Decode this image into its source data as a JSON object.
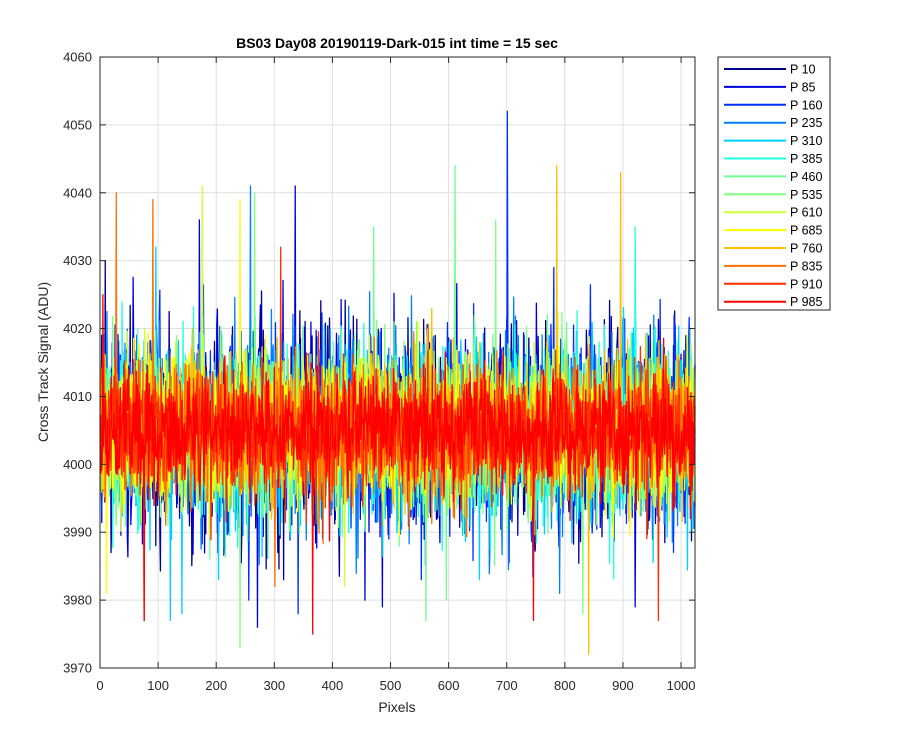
{
  "chart_data": {
    "type": "line",
    "title": "BS03 Day08 20190119-Dark-015 int time = 15 sec",
    "xlabel": "Pixels",
    "ylabel": "Cross Track Signal (ADU)",
    "xlim": [
      0,
      1024
    ],
    "ylim": [
      3970,
      4060
    ],
    "xticks": [
      0,
      100,
      200,
      300,
      400,
      500,
      600,
      700,
      800,
      900,
      1000
    ],
    "yticks": [
      3970,
      3980,
      3990,
      4000,
      4010,
      4020,
      4030,
      4040,
      4050,
      4060
    ],
    "grid": true,
    "legend_position": "outside-top-right",
    "pixel_count": 1024,
    "baseline_mean": 4005,
    "series": [
      {
        "name": "P 10",
        "color": "#00008f",
        "peaks": [
          [
            8,
            4030
          ]
        ],
        "troughs": [
          [
            18,
            3987
          ]
        ]
      },
      {
        "name": "P 85",
        "color": "#0000df",
        "peaks": [
          [
            170,
            4036
          ],
          [
            335,
            4041
          ]
        ],
        "troughs": [
          [
            270,
            3976
          ],
          [
            455,
            3980
          ],
          [
            485,
            3979
          ],
          [
            920,
            3979
          ]
        ]
      },
      {
        "name": "P 160",
        "color": "#0030ff",
        "peaks": [
          [
            700,
            4052
          ]
        ],
        "troughs": [
          [
            255,
            3980
          ],
          [
            340,
            3978
          ]
        ]
      },
      {
        "name": "P 235",
        "color": "#0080ff",
        "peaks": [
          [
            258,
            4041
          ]
        ],
        "troughs": [
          [
            790,
            3981
          ]
        ]
      },
      {
        "name": "P 310",
        "color": "#00d0ff",
        "peaks": [
          [
            95,
            4032
          ]
        ],
        "troughs": [
          [
            120,
            3977
          ],
          [
            140,
            3978
          ]
        ]
      },
      {
        "name": "P 385",
        "color": "#20ffdf",
        "peaks": [
          [
            920,
            4035
          ]
        ],
        "troughs": [
          [
            960,
            3984
          ]
        ]
      },
      {
        "name": "P 460",
        "color": "#70ff8f",
        "peaks": [
          [
            610,
            4044
          ],
          [
            470,
            4035
          ]
        ],
        "troughs": [
          [
            560,
            3977
          ],
          [
            595,
            3980
          ]
        ]
      },
      {
        "name": "P 535",
        "color": "#80ff80",
        "peaks": [
          [
            265,
            4040
          ],
          [
            680,
            4036
          ]
        ],
        "troughs": [
          [
            240,
            3973
          ],
          [
            830,
            3978
          ]
        ]
      },
      {
        "name": "P 610",
        "color": "#cfff30",
        "peaks": [
          [
            175,
            4041
          ]
        ],
        "troughs": [
          [
            420,
            3982
          ]
        ]
      },
      {
        "name": "P 685",
        "color": "#ffff00",
        "peaks": [
          [
            240,
            4039
          ]
        ],
        "troughs": [
          [
            10,
            3981
          ]
        ]
      },
      {
        "name": "P 760",
        "color": "#ffc000",
        "peaks": [
          [
            785,
            4044
          ],
          [
            895,
            4043
          ]
        ],
        "troughs": [
          [
            840,
            3972
          ]
        ]
      },
      {
        "name": "P 835",
        "color": "#ff7000",
        "peaks": [
          [
            27,
            4040
          ],
          [
            90,
            4039
          ]
        ],
        "troughs": [
          [
            300,
            3982
          ]
        ]
      },
      {
        "name": "P 910",
        "color": "#ff3000",
        "peaks": [
          [
            310,
            4032
          ]
        ],
        "troughs": [
          [
            75,
            3977
          ],
          [
            960,
            3977
          ]
        ]
      },
      {
        "name": "P 985",
        "color": "#ff0000",
        "peaks": [
          [
            4,
            4025
          ]
        ],
        "troughs": [
          [
            75,
            3977
          ],
          [
            365,
            3975
          ],
          [
            745,
            3977
          ]
        ]
      }
    ]
  }
}
